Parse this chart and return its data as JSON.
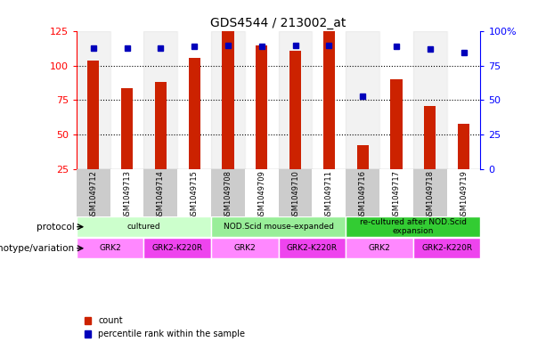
{
  "title": "GDS4544 / 213002_at",
  "samples": [
    "GSM1049712",
    "GSM1049713",
    "GSM1049714",
    "GSM1049715",
    "GSM1049708",
    "GSM1049709",
    "GSM1049710",
    "GSM1049711",
    "GSM1049716",
    "GSM1049717",
    "GSM1049718",
    "GSM1049719"
  ],
  "counts": [
    104,
    84,
    88,
    106,
    125,
    115,
    111,
    125,
    42,
    90,
    71,
    58
  ],
  "percentiles": [
    88,
    88,
    88,
    89,
    90,
    89,
    90,
    90,
    53,
    89,
    87,
    85
  ],
  "ylim_left": [
    25,
    125
  ],
  "ylim_right": [
    0,
    100
  ],
  "yticks_left": [
    25,
    50,
    75,
    100,
    125
  ],
  "yticks_right": [
    0,
    25,
    50,
    75,
    100
  ],
  "ytick_labels_right": [
    "0",
    "25",
    "50",
    "75",
    "100%"
  ],
  "bar_color": "#cc2200",
  "dot_color": "#0000bb",
  "protocols": [
    {
      "label": "cultured",
      "span": [
        0,
        4
      ],
      "color": "#ccffcc"
    },
    {
      "label": "NOD.Scid mouse-expanded",
      "span": [
        4,
        8
      ],
      "color": "#99ee99"
    },
    {
      "label": "re-cultured after NOD.Scid\nexpansion",
      "span": [
        8,
        12
      ],
      "color": "#33cc33"
    }
  ],
  "genotypes": [
    {
      "label": "GRK2",
      "span": [
        0,
        2
      ],
      "color": "#ff88ff"
    },
    {
      "label": "GRK2-K220R",
      "span": [
        2,
        4
      ],
      "color": "#ee44ee"
    },
    {
      "label": "GRK2",
      "span": [
        4,
        6
      ],
      "color": "#ff88ff"
    },
    {
      "label": "GRK2-K220R",
      "span": [
        6,
        8
      ],
      "color": "#ee44ee"
    },
    {
      "label": "GRK2",
      "span": [
        8,
        10
      ],
      "color": "#ff88ff"
    },
    {
      "label": "GRK2-K220R",
      "span": [
        10,
        12
      ],
      "color": "#ee44ee"
    }
  ],
  "sample_bg_colors": [
    "#cccccc",
    "#ffffff",
    "#cccccc",
    "#ffffff",
    "#cccccc",
    "#ffffff",
    "#cccccc",
    "#ffffff",
    "#cccccc",
    "#ffffff",
    "#cccccc",
    "#ffffff"
  ],
  "background_color": "#ffffff"
}
